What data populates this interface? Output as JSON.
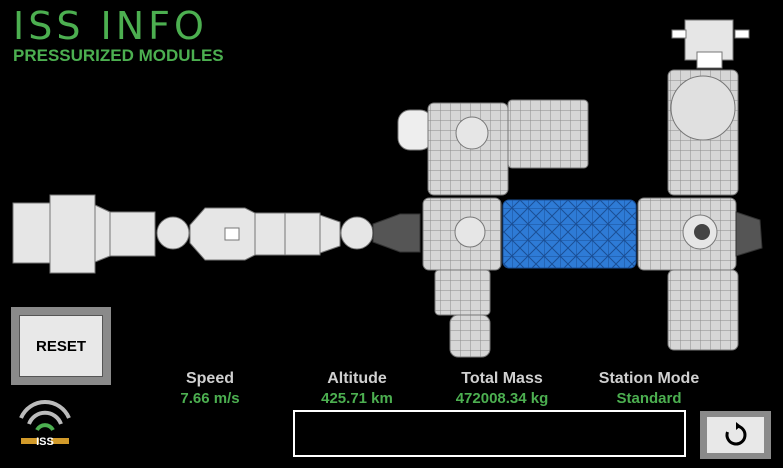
{
  "header": {
    "title": "ISS INFO",
    "subtitle": "PRESSURIZED MODULES"
  },
  "reset_button": {
    "label": "RESET"
  },
  "stats": {
    "speed": {
      "label": "Speed",
      "value": "7.66 m/s"
    },
    "altitude": {
      "label": "Altitude",
      "value": "425.71 km"
    },
    "total_mass": {
      "label": "Total Mass",
      "value": "472008.34 kg"
    },
    "station_mode": {
      "label": "Station Mode",
      "value": "Standard"
    }
  },
  "logo": {
    "text": "ISS"
  },
  "icons": {
    "refresh": "refresh-icon",
    "signal": "signal-icon"
  },
  "colors": {
    "accent_green": "#4caf50",
    "module_gray": "#d4d4d4",
    "highlight_blue": "#2e7bd6"
  }
}
